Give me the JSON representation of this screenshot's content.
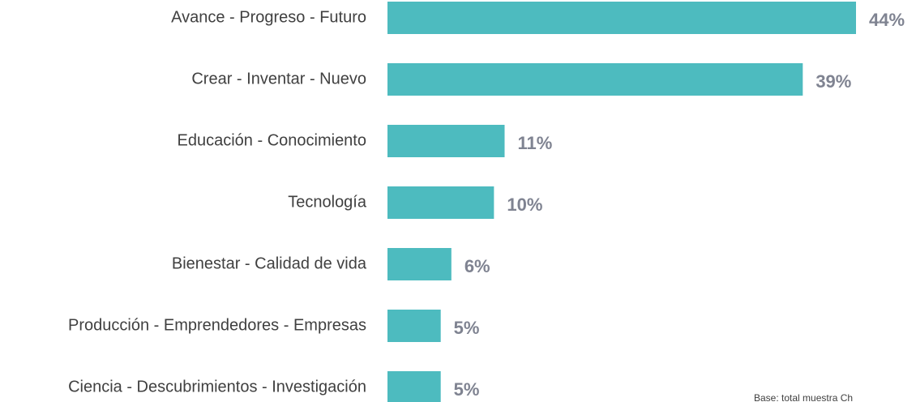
{
  "chart_data": {
    "type": "barh",
    "categories": [
      "Avance - Progreso - Futuro",
      "Crear - Inventar - Nuevo",
      "Educación - Conocimiento",
      "Tecnología",
      "Bienestar - Calidad de vida",
      "Producción - Emprendedores - Empresas",
      "Ciencia - Descubrimientos - Investigación"
    ],
    "values": [
      44,
      39,
      11,
      10,
      6,
      5,
      5
    ],
    "value_labels": [
      "44%",
      "39%",
      "11%",
      "10%",
      "6%",
      "5%",
      "5%"
    ],
    "color": "#4dbbbf",
    "footnote": "Base: total muestra Ch"
  }
}
